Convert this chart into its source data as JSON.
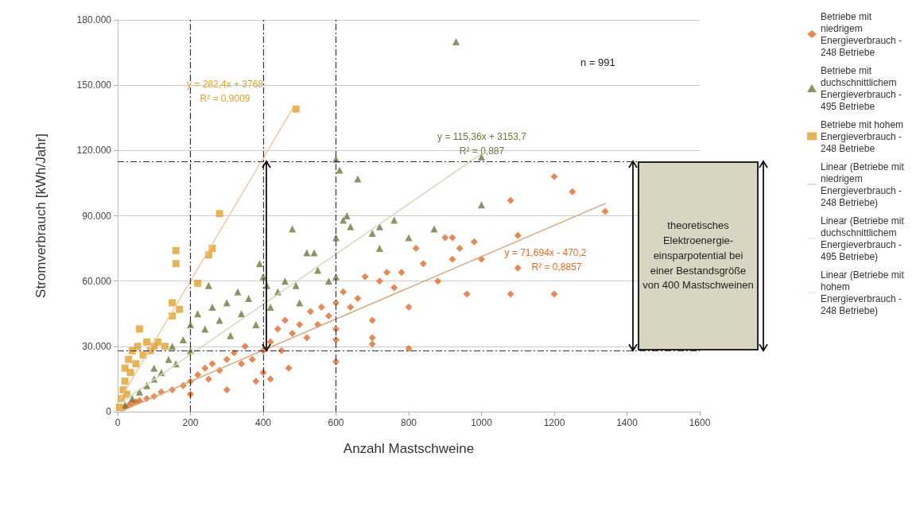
{
  "chart_data": {
    "type": "scatter",
    "xlabel": "Anzahl Mastschweine",
    "ylabel": "Stromverbrauch [kWh/Jahr]",
    "xlim": [
      0,
      1600
    ],
    "xticks": [
      0,
      200,
      400,
      600,
      800,
      1000,
      1200,
      1400,
      1600
    ],
    "ylim": [
      0,
      180000
    ],
    "yticks": [
      {
        "value": 0,
        "label": "0"
      },
      {
        "value": 30000,
        "label": "30.000"
      },
      {
        "value": 60000,
        "label": "60.000"
      },
      {
        "value": 90000,
        "label": "90.000"
      },
      {
        "value": 120000,
        "label": "120.000"
      },
      {
        "value": 150000,
        "label": "150.000"
      },
      {
        "value": 180000,
        "label": "180.000"
      }
    ],
    "grid": "y",
    "legend": "right",
    "series": [
      {
        "name": "Betriebe mit niedrigem Energieverbrauch - 248 Betriebe",
        "color": "#e06c2a",
        "marker": "diamond",
        "x": [
          20,
          30,
          40,
          50,
          60,
          80,
          100,
          120,
          150,
          180,
          200,
          200,
          220,
          240,
          250,
          260,
          280,
          300,
          300,
          320,
          340,
          350,
          370,
          380,
          400,
          400,
          420,
          420,
          440,
          450,
          460,
          470,
          480,
          500,
          520,
          530,
          550,
          560,
          580,
          600,
          600,
          600,
          600,
          620,
          640,
          660,
          680,
          700,
          700,
          700,
          720,
          740,
          760,
          780,
          800,
          800,
          820,
          840,
          880,
          900,
          920,
          920,
          940,
          960,
          980,
          1000,
          1080,
          1080,
          1100,
          1100,
          1200,
          1200,
          1250,
          1340
        ],
        "values": [
          2000,
          3000,
          4000,
          4500,
          5000,
          6000,
          7000,
          9000,
          10000,
          12000,
          14000,
          8000,
          17000,
          20000,
          15000,
          22000,
          19000,
          24000,
          10000,
          27000,
          22000,
          30000,
          24000,
          14000,
          28000,
          18000,
          32000,
          15000,
          38000,
          28000,
          42000,
          20000,
          36000,
          40000,
          34000,
          46000,
          40000,
          48000,
          44000,
          50000,
          38000,
          33000,
          23000,
          55000,
          48000,
          52000,
          62000,
          42000,
          34000,
          31000,
          60000,
          64000,
          57000,
          64000,
          29000,
          48000,
          75000,
          68000,
          60000,
          80000,
          80000,
          70000,
          75000,
          54000,
          78000,
          70000,
          97000,
          54000,
          81000,
          66000,
          108000,
          54000,
          101000,
          92000
        ]
      },
      {
        "name": "Betriebe mit duchschnittlichem Energieverbrauch - 495 Betriebe",
        "color": "#6e7a3c",
        "marker": "triangle",
        "x": [
          20,
          40,
          60,
          80,
          100,
          100,
          120,
          140,
          150,
          160,
          180,
          200,
          200,
          220,
          240,
          250,
          260,
          280,
          300,
          310,
          330,
          340,
          360,
          380,
          390,
          400,
          410,
          420,
          440,
          460,
          480,
          490,
          500,
          520,
          540,
          550,
          580,
          600,
          600,
          600,
          610,
          620,
          630,
          640,
          660,
          700,
          720,
          720,
          760,
          800,
          870,
          930,
          1000,
          1000
        ],
        "values": [
          3000,
          6000,
          9000,
          12000,
          15000,
          20000,
          18000,
          24000,
          30000,
          22000,
          33000,
          40000,
          28000,
          45000,
          38000,
          58000,
          48000,
          42000,
          50000,
          35000,
          55000,
          45000,
          52000,
          40000,
          68000,
          62000,
          58000,
          48000,
          55000,
          60000,
          84000,
          58000,
          50000,
          73000,
          73000,
          65000,
          60000,
          116000,
          80000,
          62000,
          111000,
          88000,
          90000,
          85000,
          107000,
          82000,
          75000,
          85000,
          88000,
          80000,
          84000,
          170000,
          117000,
          95000
        ]
      },
      {
        "name": "Betriebe mit hohem Energieverbrauch - 248 Betriebe",
        "color": "#e0a030",
        "marker": "square",
        "x": [
          5,
          10,
          15,
          20,
          20,
          25,
          30,
          35,
          40,
          50,
          55,
          60,
          70,
          80,
          90,
          100,
          110,
          130,
          150,
          150,
          160,
          160,
          170,
          220,
          250,
          260,
          280,
          490
        ],
        "values": [
          2000,
          6000,
          10000,
          14000,
          20000,
          8000,
          24000,
          18000,
          28000,
          22000,
          30000,
          38000,
          26000,
          32000,
          28000,
          30000,
          32000,
          30000,
          44000,
          50000,
          74000,
          68000,
          47000,
          59000,
          72000,
          75000,
          91000,
          139000
        ]
      },
      {
        "name": "Linear (Betriebe mit niedrigem Energieverbrauch - 248 Betriebe)",
        "type": "line",
        "color": "#d9a47a",
        "marker": "none",
        "x": [
          10,
          1340
        ],
        "values": [
          250,
          95600
        ]
      },
      {
        "name": "Linear (Betriebe mit duchschnittlichem Energieverbrauch - 495 Betriebe)",
        "type": "line",
        "color": "#ddd3b8",
        "marker": "none",
        "x": [
          10,
          1000
        ],
        "values": [
          4300,
          118500
        ]
      },
      {
        "name": "Linear (Betriebe mit hohem Energieverbrauch - 248 Betriebe)",
        "type": "line",
        "color": "#f2c9a0",
        "marker": "none",
        "x": [
          5,
          480
        ],
        "values": [
          5200,
          139000
        ]
      }
    ],
    "ref_lines": [
      {
        "axis": "y",
        "value": 115000,
        "color": "#333333",
        "line_style": "dashed"
      },
      {
        "axis": "y",
        "value": 28000,
        "color": "#333333",
        "line_style": "dashed"
      },
      {
        "axis": "x",
        "value": 200,
        "color": "#333333",
        "line_style": "dashed"
      },
      {
        "axis": "x",
        "value": 400,
        "color": "#333333",
        "line_style": "dashed"
      },
      {
        "axis": "x",
        "value": 600,
        "color": "#333333",
        "line_style": "dashed"
      }
    ],
    "annotations": [
      "n = 991",
      "y = 282,4x + 3768",
      "R² = 0,9009",
      "y = 115,36x + 3153,7",
      "R² = 0,887",
      "y = 71,694x - 470,2",
      "R² = 0,8857",
      "theoretisches Elektroenergie-einsparpotential bei einer Bestandsgröße von 400 Mastschweinen"
    ]
  }
}
